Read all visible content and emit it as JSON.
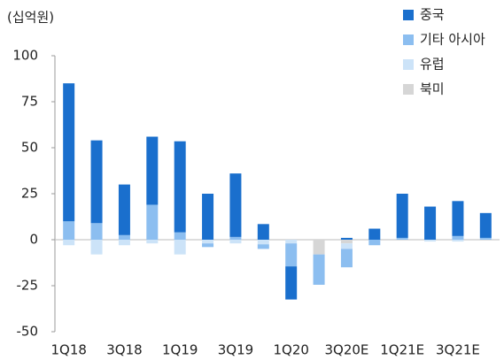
{
  "chart_data": {
    "type": "stacked_bar",
    "y_axis_label": "(십억원)",
    "categories": [
      "1Q18",
      null,
      "3Q18",
      null,
      "1Q19",
      null,
      "3Q19",
      null,
      "1Q20",
      null,
      "3Q20E",
      null,
      "1Q21E",
      null,
      "3Q21E",
      null
    ],
    "series": [
      {
        "name": "중국",
        "color": "#1a6fcd",
        "values": [
          75,
          45,
          27.5,
          37,
          49.5,
          25,
          34.5,
          8.5,
          -18,
          0,
          1,
          6,
          24,
          18,
          19,
          13.5
        ]
      },
      {
        "name": "기타 아시아",
        "color": "#8cbef0",
        "values": [
          10,
          9,
          2.5,
          19,
          4,
          -2,
          1.5,
          -2.5,
          -12.5,
          -16.5,
          -10,
          -3,
          1,
          0,
          2,
          1
        ]
      },
      {
        "name": "유럽",
        "color": "#cce3f8",
        "values": [
          -3,
          -8,
          -3,
          -2,
          -8,
          -2,
          -2,
          -2.5,
          -2,
          0,
          -3,
          0,
          0,
          -1,
          -1,
          0
        ]
      },
      {
        "name": "북미",
        "color": "#d6d6d6",
        "values": [
          0,
          0,
          0,
          0,
          0,
          0,
          0,
          0,
          0,
          -8,
          -2,
          0,
          0,
          0,
          0,
          0
        ]
      }
    ],
    "ylim": [
      -50,
      100
    ],
    "yticks": [
      -50,
      -25,
      0,
      25,
      50,
      75,
      100
    ]
  }
}
